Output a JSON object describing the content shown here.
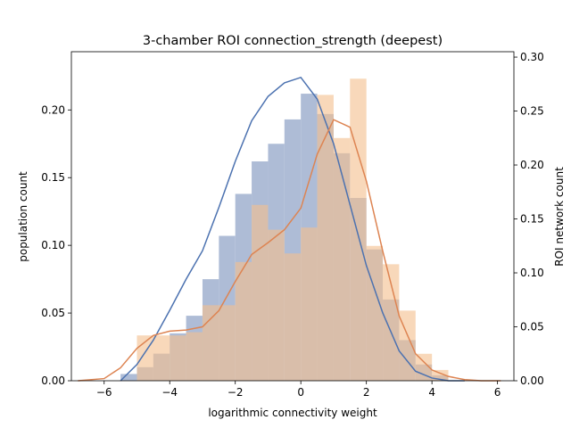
{
  "chart_data": {
    "type": "histogram",
    "title": "3-chamber ROI connection_strength (deepest)",
    "xlabel": "logarithmic connectivity weight",
    "ylabel_left": "population count",
    "ylabel_right": "ROI network count",
    "xlim": [
      -7.0,
      6.5
    ],
    "ylim_left": [
      0.0,
      0.243
    ],
    "ylim_right": [
      0.0,
      0.305
    ],
    "xticks": [
      -6,
      -4,
      -2,
      0,
      2,
      4,
      6
    ],
    "xtick_labels": [
      "−6",
      "−4",
      "−2",
      "0",
      "2",
      "4",
      "6"
    ],
    "yticks_left": [
      0.0,
      0.05,
      0.1,
      0.15,
      0.2
    ],
    "ytick_labels_left": [
      "0.00",
      "0.05",
      "0.10",
      "0.15",
      "0.20"
    ],
    "yticks_right": [
      0.0,
      0.05,
      0.1,
      0.15,
      0.2,
      0.25,
      0.3
    ],
    "ytick_labels_right": [
      "0.00",
      "0.05",
      "0.10",
      "0.15",
      "0.20",
      "0.25",
      "0.30"
    ],
    "grid": false,
    "series": [
      {
        "axis": "left",
        "color": "#4c72b0",
        "bar_color": "#aab8d4",
        "bins": [
          {
            "x0": -5.5,
            "x1": -5.0,
            "y": 0.005
          },
          {
            "x0": -5.0,
            "x1": -4.5,
            "y": 0.01
          },
          {
            "x0": -4.5,
            "x1": -4.0,
            "y": 0.02
          },
          {
            "x0": -4.0,
            "x1": -3.5,
            "y": 0.035
          },
          {
            "x0": -3.5,
            "x1": -3.0,
            "y": 0.048
          },
          {
            "x0": -3.0,
            "x1": -2.5,
            "y": 0.075
          },
          {
            "x0": -2.5,
            "x1": -2.0,
            "y": 0.107
          },
          {
            "x0": -2.0,
            "x1": -1.5,
            "y": 0.138
          },
          {
            "x0": -1.5,
            "x1": -1.0,
            "y": 0.162
          },
          {
            "x0": -1.0,
            "x1": -0.5,
            "y": 0.175
          },
          {
            "x0": -0.5,
            "x1": 0.0,
            "y": 0.193
          },
          {
            "x0": 0.0,
            "x1": 0.5,
            "y": 0.212
          },
          {
            "x0": 0.5,
            "x1": 1.0,
            "y": 0.197
          },
          {
            "x0": 1.0,
            "x1": 1.5,
            "y": 0.168
          },
          {
            "x0": 1.5,
            "x1": 2.0,
            "y": 0.135
          },
          {
            "x0": 2.0,
            "x1": 2.5,
            "y": 0.097
          },
          {
            "x0": 2.5,
            "x1": 3.0,
            "y": 0.06
          },
          {
            "x0": 3.0,
            "x1": 3.5,
            "y": 0.03
          },
          {
            "x0": 3.5,
            "x1": 4.0,
            "y": 0.012
          },
          {
            "x0": 4.0,
            "x1": 4.5,
            "y": 0.004
          }
        ],
        "kde": {
          "x": [
            -5.5,
            -5.0,
            -4.5,
            -4.0,
            -3.5,
            -3.0,
            -2.5,
            -2.0,
            -1.5,
            -1.0,
            -0.5,
            0.0,
            0.5,
            1.0,
            1.5,
            2.0,
            2.5,
            3.0,
            3.5,
            4.0,
            4.5,
            5.0
          ],
          "y": [
            0.0,
            0.012,
            0.03,
            0.052,
            0.075,
            0.096,
            0.128,
            0.162,
            0.192,
            0.21,
            0.22,
            0.224,
            0.208,
            0.175,
            0.13,
            0.085,
            0.05,
            0.022,
            0.007,
            0.002,
            0.0,
            0.0
          ]
        }
      },
      {
        "axis": "right",
        "color": "#dd8452",
        "bar_color": "#f4c08f",
        "bins": [
          {
            "x0": -5.0,
            "x1": -4.0,
            "y": 0.042
          },
          {
            "x0": -4.0,
            "x1": -3.5,
            "y": 0.042
          },
          {
            "x0": -3.5,
            "x1": -3.0,
            "y": 0.045
          },
          {
            "x0": -3.0,
            "x1": -2.0,
            "y": 0.07
          },
          {
            "x0": -2.0,
            "x1": -1.5,
            "y": 0.11
          },
          {
            "x0": -1.5,
            "x1": -1.0,
            "y": 0.163
          },
          {
            "x0": -1.0,
            "x1": -0.5,
            "y": 0.14
          },
          {
            "x0": -0.5,
            "x1": 0.0,
            "y": 0.118
          },
          {
            "x0": 0.0,
            "x1": 0.5,
            "y": 0.142
          },
          {
            "x0": 0.5,
            "x1": 1.0,
            "y": 0.265
          },
          {
            "x0": 1.0,
            "x1": 1.5,
            "y": 0.225
          },
          {
            "x0": 1.5,
            "x1": 2.0,
            "y": 0.28
          },
          {
            "x0": 2.0,
            "x1": 2.5,
            "y": 0.125
          },
          {
            "x0": 2.5,
            "x1": 3.0,
            "y": 0.108
          },
          {
            "x0": 3.0,
            "x1": 3.5,
            "y": 0.065
          },
          {
            "x0": 3.5,
            "x1": 4.0,
            "y": 0.025
          },
          {
            "x0": 4.0,
            "x1": 4.5,
            "y": 0.01
          }
        ],
        "kde": {
          "x": [
            -6.8,
            -6.0,
            -5.5,
            -5.0,
            -4.5,
            -4.0,
            -3.5,
            -3.0,
            -2.5,
            -2.0,
            -1.5,
            -1.0,
            -0.5,
            0.0,
            0.5,
            1.0,
            1.5,
            2.0,
            2.5,
            3.0,
            3.5,
            4.0,
            4.5,
            5.0,
            5.5,
            6.1
          ],
          "y": [
            0.0,
            0.002,
            0.012,
            0.03,
            0.042,
            0.046,
            0.047,
            0.05,
            0.065,
            0.092,
            0.117,
            0.128,
            0.14,
            0.16,
            0.21,
            0.242,
            0.235,
            0.185,
            0.12,
            0.06,
            0.025,
            0.01,
            0.004,
            0.001,
            0.0,
            0.0
          ]
        }
      }
    ]
  }
}
